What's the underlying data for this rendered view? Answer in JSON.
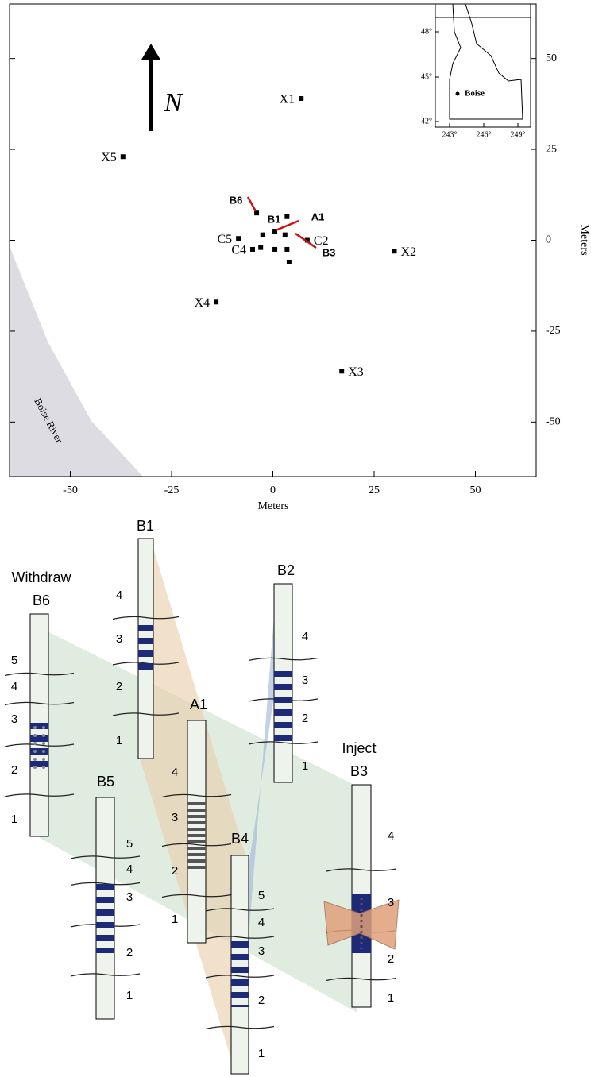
{
  "chart_data": {
    "type": "scatter",
    "x_label": "Meters",
    "y_label": "Meters",
    "xlim": [
      -65,
      65
    ],
    "ylim": [
      -65,
      65
    ],
    "xticks": [
      -50,
      -25,
      0,
      25,
      50
    ],
    "yticks": [
      -50,
      -25,
      0,
      25,
      50
    ],
    "x": [
      7,
      -37,
      30,
      17,
      -14,
      -8.5,
      8.5,
      -5,
      -4,
      3.5,
      -2.5,
      0.5,
      3,
      -3,
      0.5,
      3.5,
      4
    ],
    "values": [
      39,
      23,
      -3,
      -36,
      -17,
      0.5,
      0,
      -2.5,
      7.5,
      6.5,
      1.5,
      2.5,
      1.5,
      -2,
      -2.5,
      -2.5,
      -6
    ],
    "labels": [
      "X1",
      "X5",
      "X2",
      "X3",
      "X4",
      "C5",
      "C2",
      "C4",
      null,
      null,
      null,
      null,
      null,
      null,
      null,
      null,
      null
    ],
    "annotations": [
      "B6",
      "B1",
      "A1",
      "B3"
    ],
    "north_label": "N",
    "river_label": "Boise River",
    "inset": {
      "lat_labels": [
        "48°",
        "45°",
        "42°"
      ],
      "lon_labels": [
        "243°",
        "246°",
        "249°"
      ],
      "city": "Boise"
    }
  },
  "diagram": {
    "wells": [
      {
        "name": "B6",
        "caption": "Withdraw",
        "layers": [
          "5",
          "4",
          "3",
          "2",
          "1"
        ]
      },
      {
        "name": "B1",
        "layers": [
          "4",
          "3",
          "2",
          "1"
        ]
      },
      {
        "name": "B2",
        "layers": [
          "4",
          "3",
          "2",
          "1"
        ]
      },
      {
        "name": "A1",
        "layers": [
          "4",
          "3",
          "2",
          "1"
        ]
      },
      {
        "name": "B5",
        "layers": [
          "5",
          "4",
          "3",
          "2",
          "1"
        ]
      },
      {
        "name": "B4",
        "layers": [
          "5",
          "4",
          "3",
          "2",
          "1"
        ]
      },
      {
        "name": "B3",
        "caption": "Inject",
        "layers": [
          "4",
          "3",
          "2",
          "1"
        ]
      }
    ]
  }
}
